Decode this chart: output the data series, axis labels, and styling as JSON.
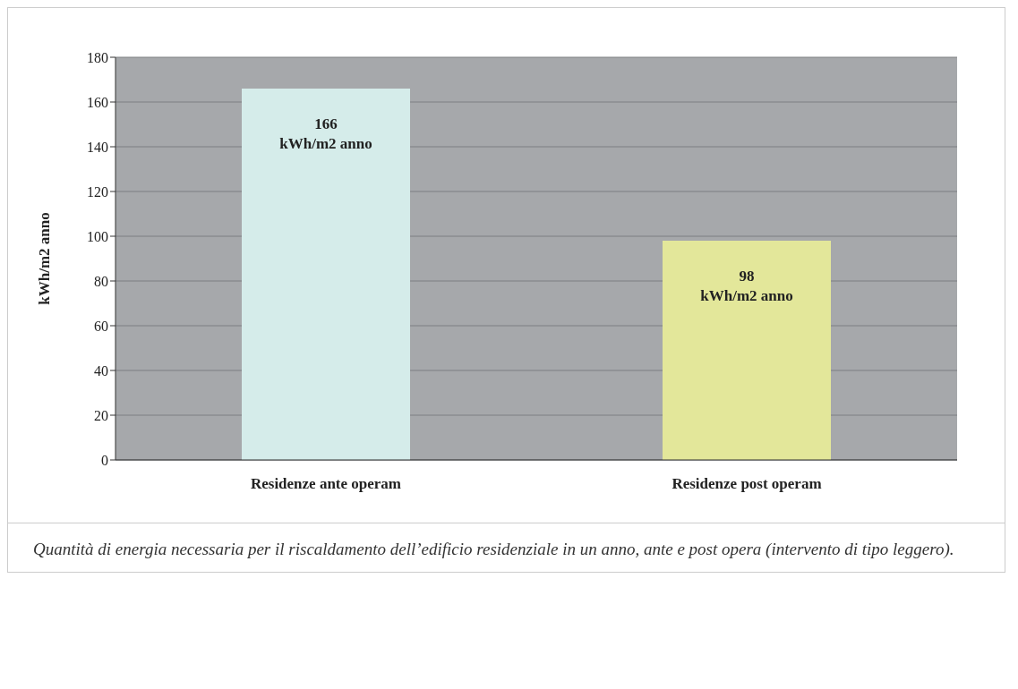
{
  "chart_data": {
    "type": "bar",
    "ylabel": "kWh/m2 anno",
    "categories": [
      "Residenze ante operam",
      "Residenze post operam"
    ],
    "values": [
      166,
      98
    ],
    "colors": [
      "#d5ecea",
      "#e3e79a"
    ],
    "value_labels": [
      "166\nkWh/m2 anno",
      "98\nkWh/m2 anno"
    ],
    "ylim": [
      0,
      180
    ],
    "yticks": [
      0,
      20,
      40,
      60,
      80,
      100,
      120,
      140,
      160,
      180
    ],
    "grid": "y",
    "annotations": [
      "Quantità di energia necessaria per il riscaldamento dell’edificio residenziale in un anno, ante e post opera (intervento di tipo leggero)."
    ]
  }
}
